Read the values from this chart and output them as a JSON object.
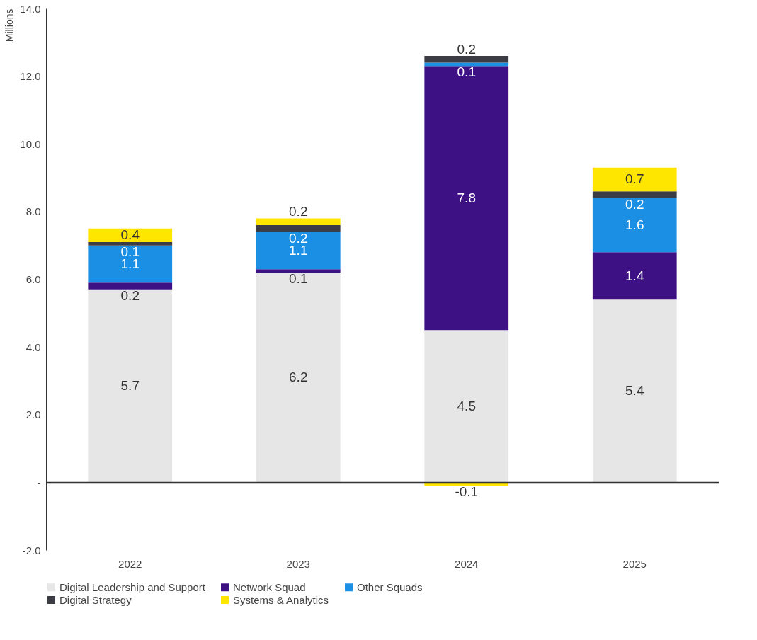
{
  "chart_data": {
    "type": "bar",
    "stacked": true,
    "ylabel": "Millions",
    "categories": [
      "2022",
      "2023",
      "2024",
      "2025"
    ],
    "series": [
      {
        "name": "Digital Leadership and Support",
        "color": "#e6e6e6",
        "values": [
          5.7,
          6.2,
          4.5,
          5.4
        ]
      },
      {
        "name": "Network Squad",
        "color": "#3d1083",
        "values": [
          0.2,
          0.1,
          7.8,
          1.4
        ]
      },
      {
        "name": "Other Squads",
        "color": "#1a8fe3",
        "values": [
          1.1,
          1.1,
          0.1,
          1.6
        ]
      },
      {
        "name": "Digital Strategy",
        "color": "#3c3c44",
        "values": [
          0.1,
          0.2,
          0.2,
          0.2
        ]
      },
      {
        "name": "Systems & Analytics",
        "color": "#ffe600",
        "values": [
          0.4,
          0.2,
          -0.1,
          0.7
        ]
      }
    ],
    "ylim": [
      -2,
      14
    ],
    "yticks": [
      {
        "value": -2,
        "label": "-2.0"
      },
      {
        "value": 0,
        "label": "-"
      },
      {
        "value": 2,
        "label": "2.0"
      },
      {
        "value": 4,
        "label": "4.0"
      },
      {
        "value": 6,
        "label": "6.0"
      },
      {
        "value": 8,
        "label": "8.0"
      },
      {
        "value": 10,
        "label": "10.0"
      },
      {
        "value": 12,
        "label": "12.0"
      },
      {
        "value": 14,
        "label": "14.0"
      }
    ],
    "ref_lines": [
      {
        "axis": "y",
        "value": 0,
        "color": "#333333"
      }
    ],
    "data_labels": true,
    "grid": false,
    "legend": "bottom"
  }
}
